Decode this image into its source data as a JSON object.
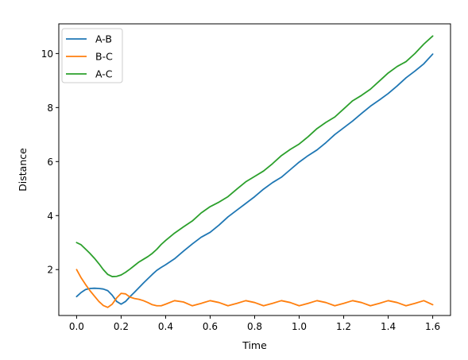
{
  "chart_data": {
    "type": "line",
    "title": "",
    "xlabel": "Time",
    "ylabel": "Distance",
    "xlim": [
      -0.08,
      1.68
    ],
    "ylim": [
      0.3,
      11.1
    ],
    "xticks": [
      0.0,
      0.2,
      0.4,
      0.6,
      0.8,
      1.0,
      1.2,
      1.4,
      1.6
    ],
    "xtick_labels": [
      "0.0",
      "0.2",
      "0.4",
      "0.6",
      "0.8",
      "1.0",
      "1.2",
      "1.4",
      "1.6"
    ],
    "yticks": [
      2,
      4,
      6,
      8,
      10
    ],
    "ytick_labels": [
      "2",
      "4",
      "6",
      "8",
      "10"
    ],
    "grid": false,
    "legend_position": "top-left",
    "series": [
      {
        "name": "A-B",
        "color": "#1f77b4",
        "x": [
          0.0,
          0.02,
          0.04,
          0.06,
          0.08,
          0.1,
          0.12,
          0.14,
          0.16,
          0.18,
          0.2,
          0.22,
          0.24,
          0.26,
          0.28,
          0.3,
          0.32,
          0.34,
          0.36,
          0.38,
          0.4,
          0.44,
          0.48,
          0.52,
          0.56,
          0.6,
          0.64,
          0.68,
          0.72,
          0.76,
          0.8,
          0.84,
          0.88,
          0.92,
          0.96,
          1.0,
          1.04,
          1.08,
          1.12,
          1.16,
          1.2,
          1.24,
          1.28,
          1.32,
          1.36,
          1.4,
          1.44,
          1.48,
          1.52,
          1.56,
          1.6
        ],
        "y": [
          1.0,
          1.15,
          1.26,
          1.3,
          1.31,
          1.3,
          1.28,
          1.22,
          1.05,
          0.82,
          0.72,
          0.82,
          1.0,
          1.16,
          1.33,
          1.5,
          1.66,
          1.82,
          1.97,
          2.08,
          2.18,
          2.4,
          2.68,
          2.95,
          3.2,
          3.38,
          3.65,
          3.95,
          4.2,
          4.45,
          4.7,
          4.98,
          5.22,
          5.42,
          5.7,
          5.98,
          6.22,
          6.43,
          6.7,
          7.0,
          7.25,
          7.5,
          7.78,
          8.05,
          8.28,
          8.52,
          8.8,
          9.1,
          9.35,
          9.62,
          9.98
        ]
      },
      {
        "name": "B-C",
        "color": "#ff7f0e",
        "x": [
          0.0,
          0.02,
          0.04,
          0.06,
          0.08,
          0.1,
          0.12,
          0.14,
          0.16,
          0.18,
          0.2,
          0.22,
          0.24,
          0.26,
          0.28,
          0.3,
          0.32,
          0.34,
          0.36,
          0.38,
          0.4,
          0.44,
          0.48,
          0.52,
          0.56,
          0.6,
          0.64,
          0.68,
          0.72,
          0.76,
          0.8,
          0.84,
          0.88,
          0.92,
          0.96,
          1.0,
          1.04,
          1.08,
          1.12,
          1.16,
          1.2,
          1.24,
          1.28,
          1.32,
          1.36,
          1.4,
          1.44,
          1.48,
          1.52,
          1.56,
          1.6
        ],
        "y": [
          2.0,
          1.7,
          1.45,
          1.22,
          1.02,
          0.82,
          0.67,
          0.6,
          0.72,
          0.95,
          1.12,
          1.1,
          0.98,
          0.93,
          0.9,
          0.85,
          0.78,
          0.7,
          0.66,
          0.66,
          0.72,
          0.85,
          0.8,
          0.66,
          0.75,
          0.85,
          0.78,
          0.66,
          0.75,
          0.85,
          0.78,
          0.66,
          0.75,
          0.85,
          0.78,
          0.66,
          0.75,
          0.85,
          0.78,
          0.66,
          0.75,
          0.85,
          0.78,
          0.66,
          0.75,
          0.85,
          0.78,
          0.66,
          0.75,
          0.85,
          0.7
        ]
      },
      {
        "name": "A-C",
        "color": "#2ca02c",
        "x": [
          0.0,
          0.02,
          0.04,
          0.06,
          0.08,
          0.1,
          0.12,
          0.14,
          0.16,
          0.18,
          0.2,
          0.22,
          0.24,
          0.26,
          0.28,
          0.3,
          0.32,
          0.34,
          0.36,
          0.38,
          0.4,
          0.44,
          0.48,
          0.52,
          0.56,
          0.6,
          0.64,
          0.68,
          0.72,
          0.76,
          0.8,
          0.84,
          0.88,
          0.92,
          0.96,
          1.0,
          1.04,
          1.08,
          1.12,
          1.16,
          1.2,
          1.24,
          1.28,
          1.32,
          1.36,
          1.4,
          1.44,
          1.48,
          1.52,
          1.56,
          1.6
        ],
        "y": [
          3.0,
          2.92,
          2.76,
          2.6,
          2.42,
          2.22,
          2.0,
          1.82,
          1.74,
          1.75,
          1.8,
          1.9,
          2.02,
          2.15,
          2.28,
          2.38,
          2.48,
          2.6,
          2.75,
          2.93,
          3.08,
          3.35,
          3.58,
          3.8,
          4.1,
          4.33,
          4.5,
          4.7,
          4.98,
          5.25,
          5.45,
          5.65,
          5.92,
          6.22,
          6.45,
          6.65,
          6.92,
          7.22,
          7.45,
          7.65,
          7.95,
          8.25,
          8.45,
          8.68,
          8.98,
          9.28,
          9.52,
          9.7,
          10.0,
          10.35,
          10.65
        ]
      }
    ]
  }
}
